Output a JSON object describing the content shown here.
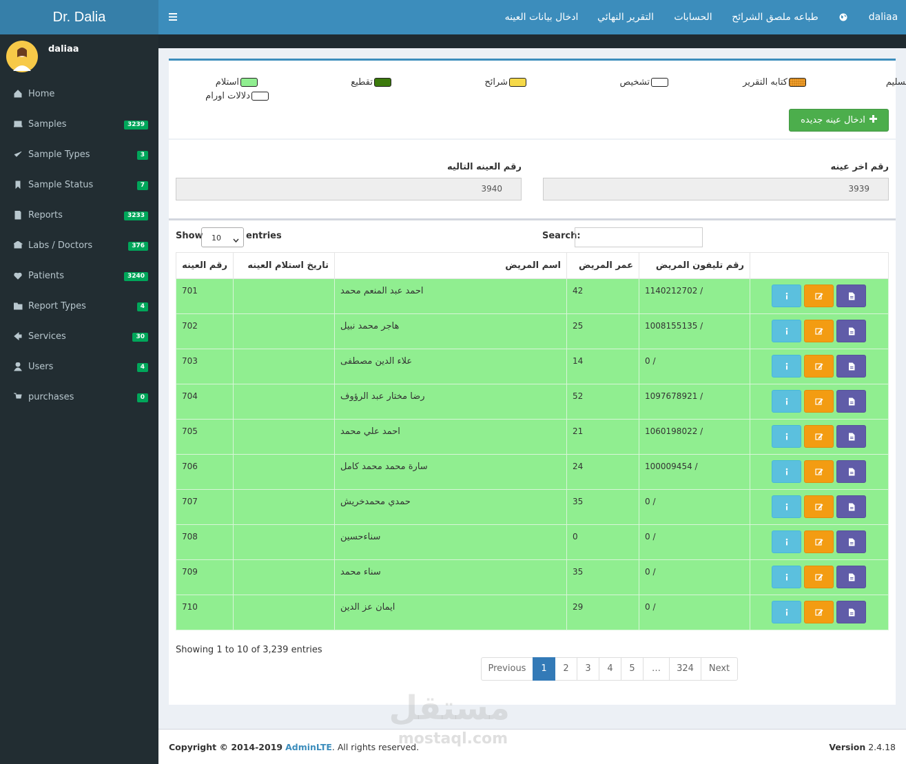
{
  "brand": "Dr. Dalia",
  "topnav": {
    "items": [
      "ادخال بيانات العينه",
      "التقرير النهائي",
      "الحسابات",
      "طباعه ملصق الشرائح"
    ],
    "user": "daliaa"
  },
  "sidebar": {
    "user": "daliaa",
    "menu": [
      {
        "label": "Home"
      },
      {
        "label": "Samples",
        "badge": "3239"
      },
      {
        "label": "Sample Types",
        "badge": "3"
      },
      {
        "label": "Sample Status",
        "badge": "7"
      },
      {
        "label": "Reports",
        "badge": "3233"
      },
      {
        "label": "Labs / Doctors",
        "badge": "376"
      },
      {
        "label": "Patients",
        "badge": "3240"
      },
      {
        "label": "Report Types",
        "badge": "4"
      },
      {
        "label": "Services",
        "badge": "30"
      },
      {
        "label": "Users",
        "badge": "4"
      },
      {
        "label": "purchases",
        "badge": "0"
      }
    ]
  },
  "legend": [
    {
      "label": "تسليم",
      "color": "#ffffff"
    },
    {
      "label": "كتابه التقرير",
      "color": "#f0a030"
    },
    {
      "label": "تشخيص",
      "color": "#ffffff"
    },
    {
      "label": "شرائح",
      "color": "#f5d949"
    },
    {
      "label": "تقطيع",
      "color": "#3c7a0c"
    },
    {
      "label": "استلام",
      "color": "#90ee90"
    },
    {
      "label": "دلالات اورام",
      "color": "#ffffff"
    }
  ],
  "new_button": "ادخال عينه جديده",
  "last_sample": {
    "label": "رقم اخر عينه",
    "value": "3939"
  },
  "next_sample": {
    "label": "رقم العينه التاليه",
    "value": "3940"
  },
  "table": {
    "show": "Show",
    "page_size": "10",
    "entries": "entries",
    "search": "Search:",
    "columns": [
      "رقم العينه",
      "تاريخ استلام العينه",
      "اسم المريض",
      "عمر المريض",
      "رقم تليفون المريض"
    ],
    "row_color": "#90ee90",
    "rows": [
      {
        "id": "701",
        "name": "احمد عبد المنعم محمد",
        "age": "42",
        "phone": "1140212702 /"
      },
      {
        "id": "702",
        "name": "هاجر محمد نبيل",
        "age": "25",
        "phone": "1008155135 /"
      },
      {
        "id": "703",
        "name": "علاء الدين مصطفى",
        "age": "14",
        "phone": "0 /"
      },
      {
        "id": "704",
        "name": "رضا مختار عبد الرؤوف",
        "age": "52",
        "phone": "1097678921 /"
      },
      {
        "id": "705",
        "name": "احمد علي محمد",
        "age": "21",
        "phone": "1060198022 /"
      },
      {
        "id": "706",
        "name": "سارة محمد محمد كامل",
        "age": "24",
        "phone": "100009454 /"
      },
      {
        "id": "707",
        "name": "حمدي محمدخريش",
        "age": "35",
        "phone": "0 /"
      },
      {
        "id": "708",
        "name": "سناءحسين",
        "age": "0",
        "phone": "0 /"
      },
      {
        "id": "709",
        "name": "سناء محمد",
        "age": "35",
        "phone": "0 /"
      },
      {
        "id": "710",
        "name": "ايمان عز الدين",
        "age": "29",
        "phone": "0 /"
      }
    ],
    "info": "Showing 1 to 10 of 3,239 entries",
    "pagination": [
      "Previous",
      "1",
      "2",
      "3",
      "4",
      "5",
      "…",
      "324",
      "Next"
    ]
  },
  "footer": {
    "copyright": "Copyright © 2014-2019",
    "link": "AdminLTE",
    "rights": ". All rights reserved.",
    "version_label": "Version",
    "version": "2.4.18"
  },
  "watermark": {
    "arabic": "مستقل",
    "latin": "mostaql.com"
  }
}
